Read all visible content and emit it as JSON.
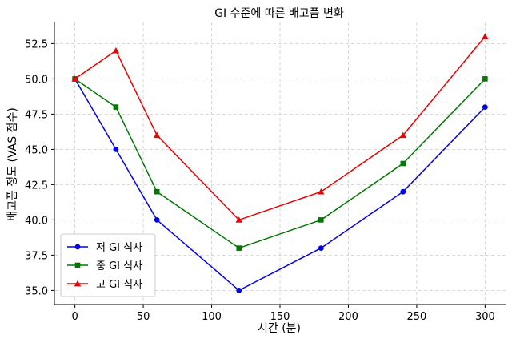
{
  "chart_data": {
    "type": "line",
    "title": "GI 수준에 따른 배고픔 변화",
    "xlabel": "시간 (분)",
    "ylabel": "배고픔 정도 (VAS 점수)",
    "x": [
      0,
      30,
      60,
      120,
      180,
      240,
      300
    ],
    "xlim": [
      -15,
      315
    ],
    "ylim": [
      34.0,
      54.0
    ],
    "xticks": [
      0,
      50,
      100,
      150,
      200,
      250,
      300
    ],
    "yticks": [
      35.0,
      37.5,
      40.0,
      42.5,
      45.0,
      47.5,
      50.0,
      52.5
    ],
    "grid": true,
    "legend_position": "lower-left",
    "series": [
      {
        "name": "저 GI 식사",
        "color": "#0000ee",
        "marker": "circle",
        "values": [
          50,
          45,
          40,
          35,
          38,
          42,
          48
        ]
      },
      {
        "name": "중 GI 식사",
        "color": "#007700",
        "marker": "square",
        "values": [
          50,
          48,
          42,
          38,
          40,
          44,
          50
        ]
      },
      {
        "name": "고 GI 식사",
        "color": "#ee0000",
        "marker": "triangle",
        "values": [
          50,
          52,
          46,
          40,
          42,
          46,
          53
        ]
      }
    ]
  }
}
